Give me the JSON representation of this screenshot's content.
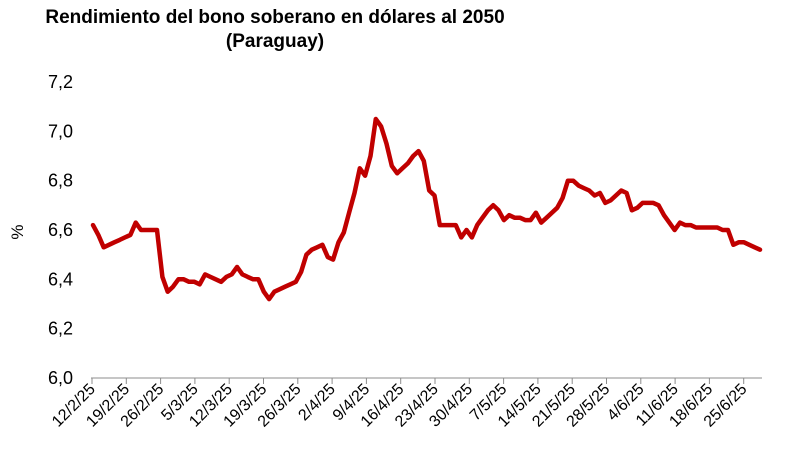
{
  "chart_data": {
    "type": "line",
    "title_line1": "Rendimiento del bono soberano en dólares al 2050",
    "title_line2": "(Paraguay)",
    "xlabel": "",
    "ylabel": "%",
    "ylim": [
      6.0,
      7.2
    ],
    "y_ticks": [
      "6,0",
      "6,2",
      "6,4",
      "6,6",
      "6,8",
      "7,0",
      "7,2"
    ],
    "x_ticks": [
      "12/2/25",
      "19/2/25",
      "26/2/25",
      "5/3/25",
      "12/3/25",
      "19/3/25",
      "26/3/25",
      "2/4/25",
      "9/4/25",
      "16/4/25",
      "23/4/25",
      "30/4/25",
      "7/5/25",
      "14/5/25",
      "21/5/25",
      "28/5/25",
      "4/6/25",
      "11/6/25",
      "18/6/25",
      "25/6/25"
    ],
    "grid": false,
    "legend": "none",
    "line_color": "#C00000",
    "series": [
      {
        "values": [
          6.62,
          6.58,
          6.53,
          6.54,
          6.55,
          6.56,
          6.57,
          6.58,
          6.63,
          6.6,
          6.6,
          6.6,
          6.6,
          6.41,
          6.35,
          6.37,
          6.4,
          6.4,
          6.39,
          6.39,
          6.38,
          6.42,
          6.41,
          6.4,
          6.39,
          6.41,
          6.42,
          6.45,
          6.42,
          6.41,
          6.4,
          6.4,
          6.35,
          6.32,
          6.35,
          6.36,
          6.37,
          6.38,
          6.39,
          6.43,
          6.5,
          6.52,
          6.53,
          6.54,
          6.49,
          6.48,
          6.55,
          6.59,
          6.67,
          6.75,
          6.85,
          6.82,
          6.9,
          7.05,
          7.02,
          6.95,
          6.86,
          6.83,
          6.85,
          6.87,
          6.9,
          6.92,
          6.88,
          6.76,
          6.74,
          6.62,
          6.62,
          6.62,
          6.62,
          6.57,
          6.6,
          6.57,
          6.62,
          6.65,
          6.68,
          6.7,
          6.68,
          6.64,
          6.66,
          6.65,
          6.65,
          6.64,
          6.64,
          6.67,
          6.63,
          6.65,
          6.67,
          6.69,
          6.73,
          6.8,
          6.8,
          6.78,
          6.77,
          6.76,
          6.74,
          6.75,
          6.71,
          6.72,
          6.74,
          6.76,
          6.75,
          6.68,
          6.69,
          6.71,
          6.71,
          6.71,
          6.7,
          6.66,
          6.63,
          6.6,
          6.63,
          6.62,
          6.62,
          6.61,
          6.61,
          6.61,
          6.61,
          6.61,
          6.6,
          6.6,
          6.54,
          6.55,
          6.55,
          6.54,
          6.53,
          6.52
        ]
      }
    ]
  }
}
